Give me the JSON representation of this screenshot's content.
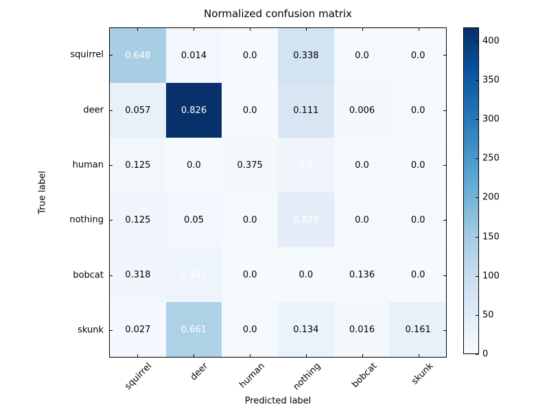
{
  "figure": {
    "title": "Normalized confusion matrix",
    "xlabel": "Predicted label",
    "ylabel": "True label"
  },
  "chart_data": {
    "type": "heatmap",
    "title": "Normalized confusion matrix",
    "xlabel": "Predicted label",
    "ylabel": "True label",
    "classes": [
      "squirrel",
      "deer",
      "human",
      "nothing",
      "bobcat",
      "skunk"
    ],
    "values": [
      [
        0.648,
        0.014,
        0.0,
        0.338,
        0.0,
        0.0
      ],
      [
        0.057,
        0.826,
        0.0,
        0.111,
        0.006,
        0.0
      ],
      [
        0.125,
        0.0,
        0.375,
        0.5,
        0.0,
        0.0
      ],
      [
        0.125,
        0.05,
        0.0,
        0.825,
        0.0,
        0.0
      ],
      [
        0.318,
        0.545,
        0.0,
        0.0,
        0.136,
        0.0
      ],
      [
        0.027,
        0.661,
        0.0,
        0.134,
        0.016,
        0.161
      ]
    ],
    "cell_labels": [
      [
        "0.648",
        "0.014",
        "0.0",
        "0.338",
        "0.0",
        "0.0"
      ],
      [
        "0.057",
        "0.826",
        "0.0",
        "0.111",
        "0.006",
        "0.0"
      ],
      [
        "0.125",
        "0.0",
        "0.375",
        "0.5",
        "0.0",
        "0.0"
      ],
      [
        "0.125",
        "0.05",
        "0.0",
        "0.825",
        "0.0",
        "0.0"
      ],
      [
        "0.318",
        "0.545",
        "0.0",
        "0.0",
        "0.136",
        "0.0"
      ],
      [
        "0.027",
        "0.661",
        "0.0",
        "0.134",
        "0.016",
        "0.161"
      ]
    ],
    "cell_colors": [
      [
        "#a8cee4",
        "#f2f7fd",
        "#f5fafe",
        "#d2e3f3",
        "#f4f9fd",
        "#f4f9fd"
      ],
      [
        "#e8f0f9",
        "#08306b",
        "#f6fafe",
        "#d8e6f4",
        "#f4f8fd",
        "#f4f9fd"
      ],
      [
        "#f2f7fc",
        "#f5fafd",
        "#f3f8fd",
        "#eff5fb",
        "#f5fafd",
        "#f5fafd"
      ],
      [
        "#f0f5fc",
        "#f1f7fc",
        "#f5f9fe",
        "#e4edf7",
        "#f5f9fd",
        "#f5f9fd"
      ],
      [
        "#f1f6fc",
        "#eef4fc",
        "#f5fafd",
        "#f5fafd",
        "#f4f9fd",
        "#f5fafd"
      ],
      [
        "#f2f8fd",
        "#aed1e6",
        "#f5f9fe",
        "#eaf2fb",
        "#f3f8fd",
        "#e8f1fa"
      ]
    ],
    "white_text_threshold": 0.5,
    "white_text_color": "#ffffff",
    "black_text_color": "#000000",
    "colormap": "Blues",
    "colorbar": {
      "ticks": [
        0,
        50,
        100,
        150,
        200,
        250,
        300,
        350,
        400
      ],
      "vmin": 0,
      "vmax": 417.5,
      "gradient_stops": [
        {
          "pos": 0.0,
          "color": "#f7fbff"
        },
        {
          "pos": 0.125,
          "color": "#deebf7"
        },
        {
          "pos": 0.25,
          "color": "#c6dbef"
        },
        {
          "pos": 0.375,
          "color": "#9ecae1"
        },
        {
          "pos": 0.5,
          "color": "#6baed6"
        },
        {
          "pos": 0.625,
          "color": "#4292c6"
        },
        {
          "pos": 0.75,
          "color": "#2171b5"
        },
        {
          "pos": 0.875,
          "color": "#08519c"
        },
        {
          "pos": 1.0,
          "color": "#08306b"
        }
      ]
    }
  }
}
